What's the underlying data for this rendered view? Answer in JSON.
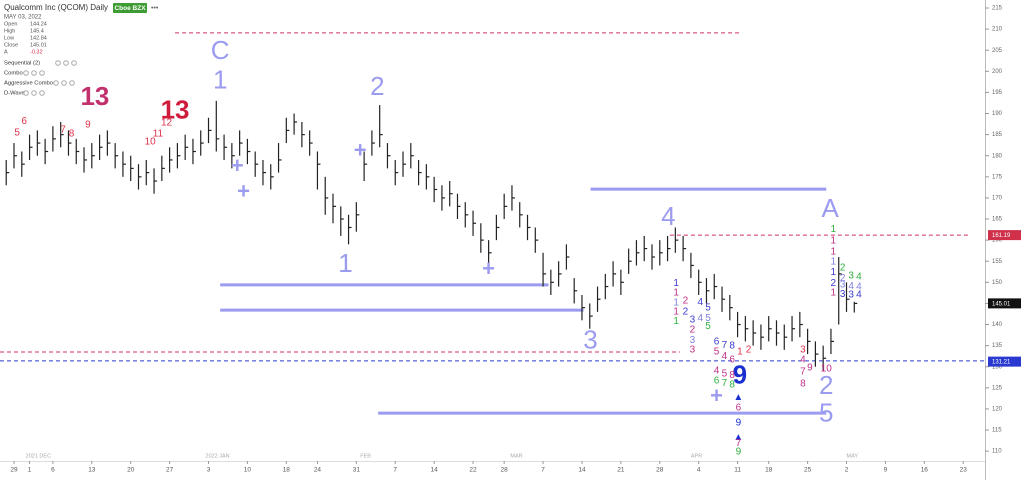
{
  "chart_data": {
    "type": "ohlc",
    "title": "Qualcomm Inc (QCOM) Daily",
    "badge": "Cboe BZX",
    "subtitle": "MAY 03, 2022",
    "quote": [
      {
        "label": "Open",
        "value": 144.24
      },
      {
        "label": "High",
        "value": 145.4
      },
      {
        "label": "Low",
        "value": 142.84
      },
      {
        "label": "Close",
        "value": 145.01
      },
      {
        "label": "A",
        "value": -0.32
      }
    ],
    "indicators": [
      "Sequential (2)",
      "Combo",
      "Aggressive Combo",
      "D-Wave"
    ],
    "ylim": [
      107.9,
      216.9
    ],
    "yticks": [
      110,
      115,
      120,
      125,
      130,
      135,
      140,
      145,
      150,
      155,
      160,
      165,
      170,
      175,
      180,
      185,
      190,
      195,
      200,
      205,
      210,
      215
    ],
    "xlim": [
      -0.8,
      125.8
    ],
    "xticks": [
      {
        "value": 1,
        "label": "29"
      },
      {
        "value": 3,
        "label": "1"
      },
      {
        "value": 6,
        "label": "6"
      },
      {
        "value": 11,
        "label": "13"
      },
      {
        "value": 16,
        "label": "20"
      },
      {
        "value": 21,
        "label": "27"
      },
      {
        "value": 26,
        "label": "3"
      },
      {
        "value": 31,
        "label": "10"
      },
      {
        "value": 36,
        "label": "18"
      },
      {
        "value": 40,
        "label": "24"
      },
      {
        "value": 45,
        "label": "31"
      },
      {
        "value": 50,
        "label": "7"
      },
      {
        "value": 55,
        "label": "14"
      },
      {
        "value": 60,
        "label": "22"
      },
      {
        "value": 64,
        "label": "28"
      },
      {
        "value": 69,
        "label": "7"
      },
      {
        "value": 74,
        "label": "14"
      },
      {
        "value": 79,
        "label": "21"
      },
      {
        "value": 84,
        "label": "28"
      },
      {
        "value": 89,
        "label": "4"
      },
      {
        "value": 94,
        "label": "11"
      },
      {
        "value": 98,
        "label": "18"
      },
      {
        "value": 103,
        "label": "25"
      },
      {
        "value": 108,
        "label": "2"
      },
      {
        "value": 113,
        "label": "9"
      },
      {
        "value": 118,
        "label": "16"
      },
      {
        "value": 123,
        "label": "23"
      }
    ],
    "month_labels": [
      {
        "value": 2.5,
        "label": "2021 DEC"
      },
      {
        "value": 25.6,
        "label": "2022 JAN"
      },
      {
        "value": 45.5,
        "label": "FEB"
      },
      {
        "value": 64.8,
        "label": "MAR"
      },
      {
        "value": 88,
        "label": "APR"
      },
      {
        "value": 108,
        "label": "MAY"
      }
    ],
    "x": [
      0,
      1,
      2,
      3,
      4,
      5,
      6,
      7,
      8,
      9,
      10,
      11,
      12,
      13,
      14,
      15,
      16,
      17,
      18,
      19,
      20,
      21,
      22,
      23,
      24,
      25,
      26,
      27,
      28,
      29,
      30,
      31,
      32,
      33,
      34,
      35,
      36,
      37,
      38,
      39,
      40,
      41,
      42,
      43,
      44,
      45,
      46,
      47,
      48,
      49,
      50,
      51,
      52,
      53,
      54,
      55,
      56,
      57,
      58,
      59,
      60,
      61,
      62,
      63,
      64,
      65,
      66,
      67,
      68,
      69,
      70,
      71,
      72,
      73,
      74,
      75,
      76,
      77,
      78,
      79,
      80,
      81,
      82,
      83,
      84,
      85,
      86,
      87,
      88,
      89,
      90,
      91,
      92,
      93,
      94,
      95,
      96,
      97,
      98,
      99,
      100,
      101,
      102,
      103,
      104,
      105,
      106,
      107,
      108,
      109
    ],
    "series": [
      {
        "name": "High",
        "color": "#222222",
        "values": [
          179,
          183,
          181,
          185,
          186,
          184,
          187,
          188,
          186,
          184,
          182,
          183,
          185,
          186,
          183,
          181,
          180,
          178,
          179,
          177,
          180,
          182,
          183,
          185,
          184,
          186,
          189,
          193,
          185,
          183,
          186,
          184,
          181,
          179,
          178,
          183,
          189,
          190,
          188,
          186,
          181,
          175,
          171,
          168,
          166,
          169,
          181,
          186,
          192,
          183,
          179,
          181,
          183,
          179,
          178,
          175,
          173,
          174,
          171,
          169,
          167,
          164,
          160,
          166,
          171,
          173,
          169,
          166,
          163,
          157,
          153,
          155,
          159,
          151,
          147,
          145,
          149,
          152,
          155,
          153,
          158,
          160,
          161,
          159,
          160,
          161,
          163,
          161,
          157,
          153,
          151,
          152,
          149,
          147,
          143,
          142,
          141,
          140,
          142,
          141,
          140,
          142,
          143,
          139,
          136,
          135,
          139,
          156,
          150,
          145.4
        ]
      },
      {
        "name": "Low",
        "color": "#222222",
        "values": [
          173,
          177,
          175,
          179,
          180,
          178,
          181,
          182,
          180,
          178,
          176,
          177,
          179,
          180,
          177,
          175,
          174,
          172,
          173,
          171,
          174,
          176,
          177,
          179,
          178,
          180,
          183,
          181,
          179,
          177,
          180,
          178,
          175,
          173,
          172,
          176,
          183,
          185,
          182,
          180,
          172,
          166,
          164,
          161,
          159,
          162,
          174,
          180,
          182,
          177,
          173,
          175,
          177,
          173,
          172,
          169,
          167,
          168,
          165,
          163,
          161,
          157,
          154,
          160,
          165,
          167,
          163,
          160,
          157,
          149,
          147,
          149,
          153,
          145,
          141,
          139,
          143,
          146,
          149,
          147,
          152,
          154,
          155,
          153,
          154,
          155,
          157,
          155,
          151,
          147,
          145,
          146,
          143,
          141,
          137,
          136,
          135,
          134,
          136,
          135,
          134,
          136,
          137,
          133,
          130,
          129,
          133,
          140,
          143,
          142.84
        ]
      },
      {
        "name": "Close",
        "color": "#222222",
        "values": [
          176,
          180,
          178,
          182,
          183,
          181,
          184,
          185,
          183,
          181,
          179,
          180,
          182,
          183,
          180,
          178,
          177,
          175,
          176,
          174,
          177,
          179,
          180,
          182,
          181,
          183,
          186,
          184,
          182,
          180,
          183,
          181,
          178,
          176,
          175,
          179,
          186,
          188,
          185,
          183,
          178,
          170,
          168,
          165,
          163,
          166,
          178,
          183,
          185,
          180,
          176,
          178,
          180,
          176,
          175,
          172,
          170,
          171,
          168,
          166,
          164,
          160,
          157,
          163,
          168,
          170,
          166,
          163,
          160,
          152,
          150,
          152,
          156,
          148,
          144,
          142,
          146,
          149,
          152,
          150,
          155,
          157,
          158,
          156,
          157,
          158,
          160,
          158,
          154,
          150,
          148,
          149,
          146,
          144,
          140,
          139,
          138,
          137,
          139,
          138,
          137,
          139,
          140,
          136,
          133,
          132,
          136,
          152,
          146,
          145.01
        ]
      }
    ],
    "lines": [
      {
        "y": 209.1,
        "x0": 21.7,
        "x1": 94.3,
        "color": "#d0306a",
        "dashed": true
      },
      {
        "y": 133.5,
        "x0": -0.8,
        "x1": 86.6,
        "color": "#d0306a",
        "dashed": true
      },
      {
        "y": 131.4,
        "x0": -0.8,
        "x1": 125.8,
        "color": "#2a3ad0",
        "dashed": true
      },
      {
        "y": 161.2,
        "x0": 85.3,
        "x1": 123.9,
        "color": "#d0306a",
        "dashed": true
      },
      {
        "y": 172.1,
        "x0": 75.1,
        "x1": 105.4,
        "color": "#9b9bef",
        "dashed": false
      },
      {
        "y": 149.4,
        "x0": 27.5,
        "x1": 69.7,
        "color": "#9b9bef",
        "dashed": false
      },
      {
        "y": 143.4,
        "x0": 27.5,
        "x1": 74.2,
        "color": "#9b9bef",
        "dashed": false
      },
      {
        "y": 119.0,
        "x0": 47.8,
        "x1": 105.4,
        "color": "#9b9bef",
        "dashed": false
      }
    ],
    "price_tags": [
      {
        "value": 161.19,
        "color": "#d0304a"
      },
      {
        "value": 145.01,
        "color": "#111111"
      },
      {
        "value": 131.21,
        "color": "#2a3ad0"
      }
    ],
    "wave_labels": [
      {
        "text": "C",
        "x": 27.5,
        "y": 204.6,
        "color": "#9b9bef"
      },
      {
        "text": "1",
        "x": 27.5,
        "y": 197.5,
        "color": "#9b9bef"
      },
      {
        "text": "2",
        "x": 47.7,
        "y": 196.0,
        "color": "#9b9bef"
      },
      {
        "text": "1",
        "x": 43.6,
        "y": 154.1,
        "color": "#9b9bef"
      },
      {
        "text": "4",
        "x": 85.1,
        "y": 165.2,
        "color": "#9b9bef"
      },
      {
        "text": "3",
        "x": 75.1,
        "y": 135.9,
        "color": "#9b9bef"
      },
      {
        "text": "A",
        "x": 105.9,
        "y": 167.1,
        "color": "#9b9bef"
      },
      {
        "text": "2",
        "x": 105.4,
        "y": 125.2,
        "color": "#9b9bef"
      },
      {
        "text": "5",
        "x": 105.4,
        "y": 118.6,
        "color": "#9b9bef"
      }
    ],
    "wave_marks": [
      {
        "text": "+",
        "x": 29.7,
        "y": 177.3,
        "color": "#9b9bef"
      },
      {
        "text": "+",
        "x": 30.5,
        "y": 171.2,
        "color": "#9b9bef"
      },
      {
        "text": "+",
        "x": 45.5,
        "y": 180.9,
        "color": "#9b9bef"
      },
      {
        "text": "+",
        "x": 62.0,
        "y": 152.9,
        "color": "#9b9bef"
      },
      {
        "text": "+",
        "x": 91.3,
        "y": 122.8,
        "color": "#9b9bef"
      }
    ],
    "big_counts": [
      {
        "text": "13",
        "x": 21.7,
        "y": 190.4,
        "color": "#d01c3c"
      },
      {
        "text": "13",
        "x": 11.4,
        "y": 193.7,
        "color": "#c2306e"
      },
      {
        "text": "9",
        "x": 94.3,
        "y": 127.6,
        "color": "#1a2fcf"
      }
    ],
    "counts": [
      {
        "text": "5",
        "x": 1.4,
        "y": 185.4,
        "color": "#e0304a"
      },
      {
        "text": "6",
        "x": 2.3,
        "y": 188.2,
        "color": "#e0304a"
      },
      {
        "text": "7",
        "x": 7.3,
        "y": 186.1,
        "color": "#e0304a"
      },
      {
        "text": "8",
        "x": 8.4,
        "y": 185.2,
        "color": "#e0304a"
      },
      {
        "text": "9",
        "x": 10.5,
        "y": 187.3,
        "color": "#e0304a"
      },
      {
        "text": "10",
        "x": 18.5,
        "y": 183.3,
        "color": "#e0304a"
      },
      {
        "text": "11",
        "x": 19.5,
        "y": 185.2,
        "color": "#e0304a"
      },
      {
        "text": "12",
        "x": 20.6,
        "y": 187.8,
        "color": "#e0304a"
      },
      {
        "text": "1",
        "x": 86.1,
        "y": 149.8,
        "color": "#3a3ad0"
      },
      {
        "text": "1",
        "x": 86.1,
        "y": 147.5,
        "color": "#c0308a"
      },
      {
        "text": "1",
        "x": 86.1,
        "y": 145.1,
        "color": "#8080e0"
      },
      {
        "text": "1",
        "x": 86.1,
        "y": 143.0,
        "color": "#c0308a"
      },
      {
        "text": "1",
        "x": 86.1,
        "y": 140.8,
        "color": "#30b040"
      },
      {
        "text": "2",
        "x": 87.3,
        "y": 145.6,
        "color": "#c0308a"
      },
      {
        "text": "2",
        "x": 87.3,
        "y": 143.0,
        "color": "#3a3ad0"
      },
      {
        "text": "3",
        "x": 88.2,
        "y": 141.1,
        "color": "#3a3ad0"
      },
      {
        "text": "2",
        "x": 88.2,
        "y": 138.7,
        "color": "#c0308a"
      },
      {
        "text": "3",
        "x": 88.2,
        "y": 136.3,
        "color": "#8080e0"
      },
      {
        "text": "3",
        "x": 88.2,
        "y": 134.0,
        "color": "#c0308a"
      },
      {
        "text": "4",
        "x": 89.2,
        "y": 145.3,
        "color": "#3a3ad0"
      },
      {
        "text": "4",
        "x": 89.2,
        "y": 141.5,
        "color": "#8080e0"
      },
      {
        "text": "5",
        "x": 90.2,
        "y": 143.9,
        "color": "#3a3ad0"
      },
      {
        "text": "5",
        "x": 90.2,
        "y": 141.5,
        "color": "#8080e0"
      },
      {
        "text": "5",
        "x": 90.2,
        "y": 139.6,
        "color": "#30b040"
      },
      {
        "text": "6",
        "x": 91.3,
        "y": 135.9,
        "color": "#3a3ad0"
      },
      {
        "text": "5",
        "x": 91.3,
        "y": 133.5,
        "color": "#c0308a"
      },
      {
        "text": "4",
        "x": 91.3,
        "y": 129.0,
        "color": "#c0308a"
      },
      {
        "text": "6",
        "x": 91.3,
        "y": 126.6,
        "color": "#30b040"
      },
      {
        "text": "7",
        "x": 92.3,
        "y": 135.1,
        "color": "#3a3ad0"
      },
      {
        "text": "4",
        "x": 92.3,
        "y": 132.5,
        "color": "#c0308a"
      },
      {
        "text": "5",
        "x": 92.3,
        "y": 128.3,
        "color": "#c0308a"
      },
      {
        "text": "7",
        "x": 92.3,
        "y": 126.1,
        "color": "#30b040"
      },
      {
        "text": "8",
        "x": 93.3,
        "y": 134.9,
        "color": "#3a3ad0"
      },
      {
        "text": "6",
        "x": 93.3,
        "y": 131.6,
        "color": "#c0308a"
      },
      {
        "text": "8",
        "x": 93.3,
        "y": 128.0,
        "color": "#c0308a"
      },
      {
        "text": "8",
        "x": 93.3,
        "y": 125.7,
        "color": "#30b040"
      },
      {
        "text": "1",
        "x": 94.3,
        "y": 133.5,
        "color": "#e0304a"
      },
      {
        "text": "2",
        "x": 95.4,
        "y": 134.0,
        "color": "#e0304a"
      },
      {
        "text": "▲",
        "x": 94.1,
        "y": 122.8,
        "color": "#1a2fcf"
      },
      {
        "text": "6",
        "x": 94.1,
        "y": 120.2,
        "color": "#c0308a"
      },
      {
        "text": "9",
        "x": 94.1,
        "y": 116.7,
        "color": "#1a2fcf"
      },
      {
        "text": "▲",
        "x": 94.1,
        "y": 113.3,
        "color": "#1a2fcf"
      },
      {
        "text": "7",
        "x": 94.1,
        "y": 111.9,
        "color": "#c0308a"
      },
      {
        "text": "9",
        "x": 94.1,
        "y": 109.8,
        "color": "#30b040"
      },
      {
        "text": "3",
        "x": 102.4,
        "y": 134.0,
        "color": "#e0304a"
      },
      {
        "text": "4",
        "x": 102.4,
        "y": 131.6,
        "color": "#c0308a"
      },
      {
        "text": "7",
        "x": 102.4,
        "y": 128.8,
        "color": "#c0308a"
      },
      {
        "text": "8",
        "x": 102.4,
        "y": 125.9,
        "color": "#c0308a"
      },
      {
        "text": "9",
        "x": 103.3,
        "y": 129.7,
        "color": "#c0308a"
      },
      {
        "text": "10",
        "x": 105.4,
        "y": 129.5,
        "color": "#c0308a"
      },
      {
        "text": "1",
        "x": 106.3,
        "y": 162.6,
        "color": "#30b040"
      },
      {
        "text": "1",
        "x": 106.3,
        "y": 159.8,
        "color": "#c0308a"
      },
      {
        "text": "1",
        "x": 106.3,
        "y": 157.2,
        "color": "#c0308a"
      },
      {
        "text": "1",
        "x": 106.3,
        "y": 154.8,
        "color": "#8080e0"
      },
      {
        "text": "1",
        "x": 106.3,
        "y": 152.4,
        "color": "#3a3ad0"
      },
      {
        "text": "2",
        "x": 106.3,
        "y": 149.8,
        "color": "#3a3ad0"
      },
      {
        "text": "1",
        "x": 106.3,
        "y": 147.5,
        "color": "#c0308a"
      },
      {
        "text": "2",
        "x": 107.5,
        "y": 153.4,
        "color": "#30b040"
      },
      {
        "text": "2",
        "x": 107.5,
        "y": 151.0,
        "color": "#8080e0"
      },
      {
        "text": "3",
        "x": 107.5,
        "y": 149.4,
        "color": "#8080e0"
      },
      {
        "text": "3",
        "x": 107.5,
        "y": 147.2,
        "color": "#3a3ad0"
      },
      {
        "text": "3",
        "x": 108.6,
        "y": 151.5,
        "color": "#30b040"
      },
      {
        "text": "4",
        "x": 108.6,
        "y": 149.1,
        "color": "#8080e0"
      },
      {
        "text": "3",
        "x": 108.6,
        "y": 147.0,
        "color": "#3a3ad0"
      },
      {
        "text": "4",
        "x": 109.6,
        "y": 151.3,
        "color": "#30b040"
      },
      {
        "text": "4",
        "x": 109.6,
        "y": 148.9,
        "color": "#8080e0"
      },
      {
        "text": "4",
        "x": 109.6,
        "y": 147.0,
        "color": "#3a3ad0"
      }
    ]
  }
}
